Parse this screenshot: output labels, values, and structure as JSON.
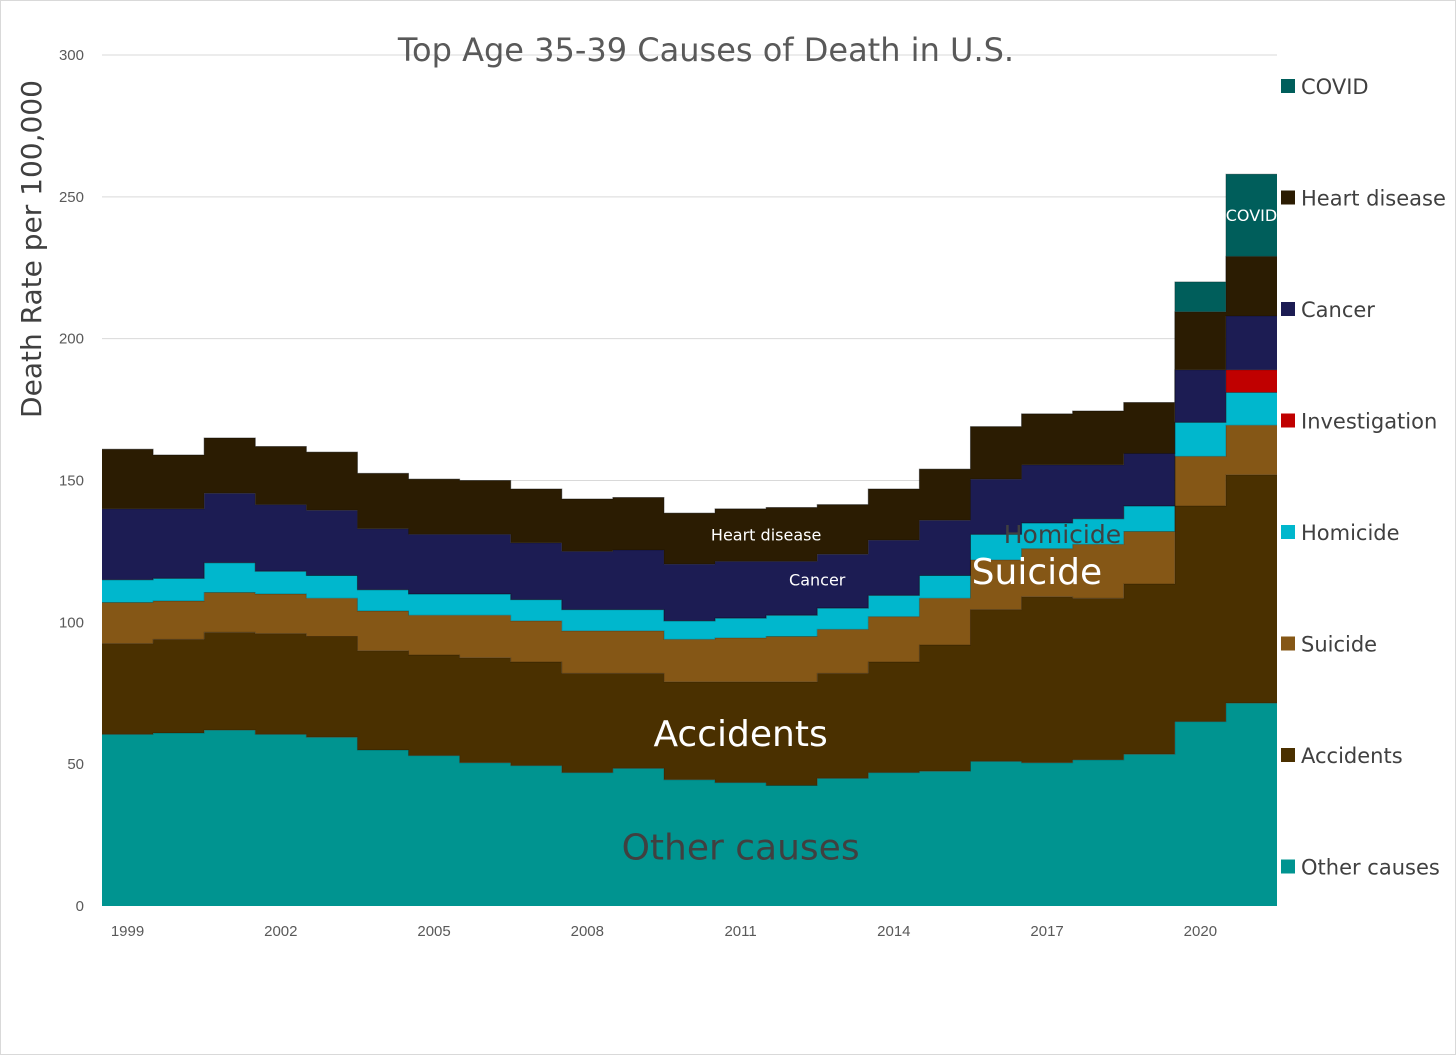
{
  "chart_data": {
    "type": "area",
    "title": "Top Age 35-39 Causes of Death in U.S.",
    "xlabel": "",
    "ylabel": "Death Rate per 100,000",
    "ylim": [
      0,
      300
    ],
    "yticks": [
      0,
      50,
      100,
      150,
      200,
      250,
      300
    ],
    "grid": true,
    "legend_position": "right",
    "x": [
      1999,
      2000,
      2001,
      2002,
      2003,
      2004,
      2005,
      2006,
      2007,
      2008,
      2009,
      2010,
      2011,
      2012,
      2013,
      2014,
      2015,
      2016,
      2017,
      2018,
      2019,
      2020,
      2021
    ],
    "xtick_labels": [
      "1999",
      "2002",
      "2005",
      "2008",
      "2011",
      "2014",
      "2017",
      "2020"
    ],
    "series": [
      {
        "name": "Other causes",
        "color": "#009490",
        "values": [
          60.5,
          61,
          62,
          60.5,
          59.5,
          55,
          53,
          50.5,
          49.5,
          47,
          48.5,
          44.5,
          43.5,
          42.5,
          45,
          47,
          47.5,
          51,
          50.5,
          51.5,
          53.5,
          65,
          71.5
        ]
      },
      {
        "name": "Accidents",
        "color": "#4a3000",
        "values": [
          32,
          33,
          34.5,
          35.5,
          35.5,
          35,
          35.5,
          37,
          36.5,
          35,
          33.5,
          34.5,
          35.5,
          36.5,
          37,
          39,
          44.5,
          53.5,
          58.5,
          57,
          60,
          76,
          80.5
        ]
      },
      {
        "name": "Suicide",
        "color": "#855716",
        "values": [
          14.5,
          13.5,
          14,
          14,
          13.5,
          14,
          14,
          15,
          14.5,
          15,
          15,
          15,
          15.5,
          16,
          15.5,
          16,
          16.5,
          17.5,
          17,
          19,
          18.5,
          17.5,
          17.5
        ]
      },
      {
        "name": "Homicide",
        "color": "#00b7cd",
        "values": [
          8,
          8,
          10.5,
          8,
          8,
          7.5,
          7.5,
          7.5,
          7.5,
          7.5,
          7.5,
          6.5,
          7,
          7.5,
          7.5,
          7.5,
          8,
          9,
          9,
          9,
          9,
          12,
          11.5
        ]
      },
      {
        "name": "Investigation",
        "color": "#c00000",
        "values": [
          0,
          0,
          0,
          0,
          0,
          0,
          0,
          0,
          0,
          0,
          0,
          0,
          0,
          0,
          0,
          0,
          0,
          0,
          0,
          0,
          0,
          0,
          8
        ]
      },
      {
        "name": "Cancer",
        "color": "#1c1c53",
        "values": [
          25,
          24.5,
          24.5,
          23.5,
          23,
          21.5,
          21,
          21,
          20,
          20.5,
          21,
          20,
          20,
          19,
          19,
          19.5,
          19.5,
          19.5,
          20.5,
          19,
          18.5,
          18.5,
          19
        ]
      },
      {
        "name": "Heart disease",
        "color": "#2b1c02",
        "values": [
          21,
          19,
          19.5,
          20.5,
          20.5,
          19.5,
          19.5,
          19,
          19,
          18.5,
          18.5,
          18,
          18.5,
          19,
          17.5,
          18,
          18,
          18.5,
          18,
          19,
          18,
          20.5,
          21
        ]
      },
      {
        "name": "COVID",
        "color": "#005e5b",
        "values": [
          0,
          0,
          0,
          0,
          0,
          0,
          0,
          0,
          0,
          0,
          0,
          0,
          0,
          0,
          0,
          0,
          0,
          0,
          0,
          0,
          0,
          10.5,
          29
        ]
      }
    ],
    "annotations": [
      {
        "text": "Other causes",
        "x": 2011,
        "y": 20,
        "size": "large",
        "color": "#404040"
      },
      {
        "text": "Accidents",
        "x": 2011,
        "y": 60,
        "size": "large",
        "color": "#ffffff"
      },
      {
        "text": "Suicide",
        "x": 2016.8,
        "y": 117,
        "size": "large",
        "color": "#ffffff"
      },
      {
        "text": "Homicide",
        "x": 2017.3,
        "y": 130.5,
        "size": "medium",
        "color": "#404040"
      },
      {
        "text": "Cancer",
        "x": 2012.5,
        "y": 114.5,
        "size": "small",
        "color": "#ffffff"
      },
      {
        "text": "Heart disease",
        "x": 2011.5,
        "y": 130.5,
        "size": "small",
        "color": "#ffffff"
      },
      {
        "text": "COVID",
        "x": 2021,
        "y": 243,
        "size": "small",
        "color": "#ffffff"
      }
    ]
  }
}
